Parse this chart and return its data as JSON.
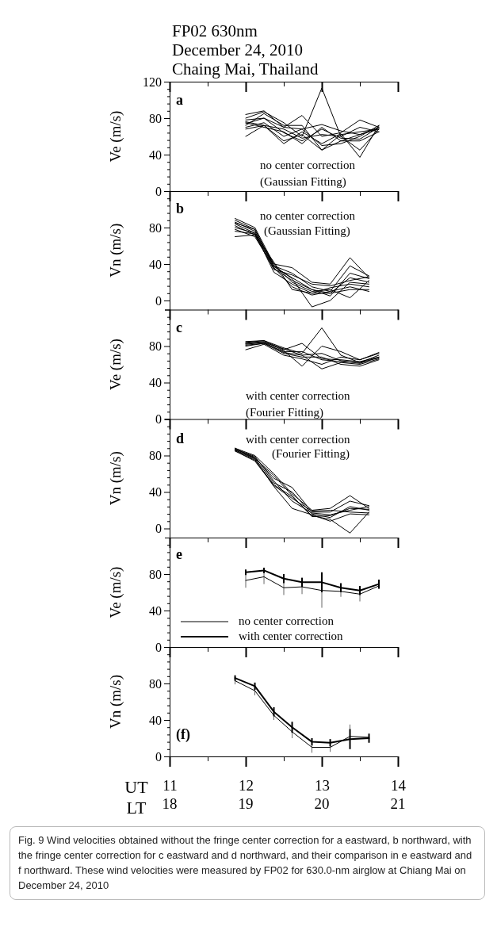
{
  "chart_data": [
    {
      "type": "line",
      "title": "FP02 630nm\nDecember 24, 2010\nChaing Mai, Thailand",
      "ylabel": "Ve (m/s)",
      "annotations": [
        "a",
        "no center correction",
        "(Gaussian Fitting)"
      ],
      "x": [
        12.0,
        12.24,
        12.5,
        12.74,
        13.0,
        13.25,
        13.5,
        13.75
      ],
      "xlim": [
        11,
        14
      ],
      "xticks": [
        11,
        {
          "value": 11.5,
          "label": null
        },
        12,
        {
          "value": 12.5,
          "label": null
        },
        13,
        {
          "value": 13.5,
          "label": null
        },
        14
      ],
      "ylim": [
        0,
        120
      ],
      "yticks": [
        0,
        {
          "value": 8,
          "label": null
        },
        {
          "value": 16,
          "label": null
        },
        {
          "value": 24,
          "label": null
        },
        {
          "value": 32,
          "label": null
        },
        40,
        {
          "value": 48,
          "label": null
        },
        {
          "value": 56,
          "label": null
        },
        {
          "value": 64,
          "label": null
        },
        {
          "value": 72,
          "label": null
        },
        80,
        {
          "value": 88,
          "label": null
        },
        {
          "value": 96,
          "label": null
        },
        {
          "value": 104,
          "label": null
        },
        {
          "value": 112,
          "label": null
        },
        120
      ],
      "tick_labels": "y",
      "series": [
        {
          "color": "#000000",
          "values": [
            84,
            88,
            70,
            68,
            73,
            66,
            62,
            70
          ]
        },
        {
          "color": "#000000",
          "values": [
            80,
            87,
            75,
            60,
            113,
            60,
            45,
            68
          ]
        },
        {
          "color": "#000000",
          "values": [
            78,
            80,
            70,
            83,
            60,
            64,
            78,
            70
          ]
        },
        {
          "color": "#000000",
          "values": [
            76,
            72,
            52,
            65,
            52,
            63,
            37,
            72
          ]
        },
        {
          "color": "#000000",
          "values": [
            75,
            70,
            65,
            52,
            70,
            55,
            55,
            65
          ]
        },
        {
          "color": "#000000",
          "values": [
            72,
            85,
            72,
            72,
            45,
            62,
            65,
            68
          ]
        },
        {
          "color": "#000000",
          "values": [
            70,
            75,
            60,
            68,
            50,
            52,
            60,
            72
          ]
        },
        {
          "color": "#000000",
          "values": [
            68,
            72,
            68,
            58,
            62,
            60,
            70,
            65
          ]
        },
        {
          "color": "#000000",
          "values": [
            60,
            72,
            55,
            62,
            45,
            55,
            62,
            68
          ]
        },
        {
          "color": "#000000",
          "values": [
            74,
            80,
            64,
            55,
            68,
            58,
            57,
            70
          ]
        }
      ]
    },
    {
      "type": "line",
      "ylabel": "Vn (m/s)",
      "annotations": [
        "b",
        "no center correction",
        "(Gaussian Fitting)"
      ],
      "x": [
        11.86,
        12.12,
        12.37,
        12.61,
        12.87,
        13.11,
        13.37,
        13.62
      ],
      "xlim": [
        11,
        14
      ],
      "xticks": [
        11,
        {
          "value": 11.5,
          "label": null
        },
        12,
        {
          "value": 12.5,
          "label": null
        },
        13,
        {
          "value": 13.5,
          "label": null
        },
        14
      ],
      "ylim": [
        -10,
        120
      ],
      "yticks": [
        0,
        {
          "value": 8,
          "label": null
        },
        {
          "value": 16,
          "label": null
        },
        {
          "value": 24,
          "label": null
        },
        {
          "value": 32,
          "label": null
        },
        40,
        {
          "value": 48,
          "label": null
        },
        {
          "value": 56,
          "label": null
        },
        {
          "value": 64,
          "label": null
        },
        {
          "value": 72,
          "label": null
        },
        80,
        {
          "value": 88,
          "label": null
        },
        {
          "value": 96,
          "label": null
        },
        {
          "value": 104,
          "label": null
        },
        {
          "value": 112,
          "label": null
        }
      ],
      "tick_labels": "y",
      "series": [
        {
          "color": "#000000",
          "values": [
            90,
            80,
            40,
            36,
            20,
            18,
            47,
            25
          ]
        },
        {
          "color": "#000000",
          "values": [
            88,
            78,
            38,
            30,
            15,
            10,
            38,
            27
          ]
        },
        {
          "color": "#000000",
          "values": [
            86,
            76,
            35,
            22,
            12,
            5,
            30,
            24
          ]
        },
        {
          "color": "#000000",
          "values": [
            84,
            74,
            31,
            18,
            8,
            8,
            25,
            20
          ]
        },
        {
          "color": "#000000",
          "values": [
            82,
            72,
            38,
            24,
            -7,
            0,
            20,
            18
          ]
        },
        {
          "color": "#000000",
          "values": [
            80,
            74,
            40,
            20,
            10,
            12,
            3,
            22
          ]
        },
        {
          "color": "#000000",
          "values": [
            78,
            70,
            36,
            15,
            6,
            10,
            15,
            10
          ]
        },
        {
          "color": "#000000",
          "values": [
            76,
            73,
            42,
            12,
            8,
            14,
            18,
            15
          ]
        },
        {
          "color": "#000000",
          "values": [
            70,
            72,
            34,
            28,
            18,
            16,
            22,
            26
          ]
        },
        {
          "color": "#000000",
          "values": [
            85,
            78,
            37,
            25,
            12,
            8,
            12,
            12
          ]
        }
      ]
    },
    {
      "type": "line",
      "ylabel": "Ve (m/s)",
      "annotations": [
        "c",
        "with center correction",
        "(Fourier Fitting)"
      ],
      "x": [
        12.0,
        12.24,
        12.5,
        12.74,
        13.0,
        13.25,
        13.5,
        13.75
      ],
      "xlim": [
        11,
        14
      ],
      "xticks": [
        11,
        {
          "value": 11.5,
          "label": null
        },
        12,
        {
          "value": 12.5,
          "label": null
        },
        13,
        {
          "value": 13.5,
          "label": null
        },
        14
      ],
      "ylim": [
        0,
        120
      ],
      "yticks": [
        0,
        {
          "value": 8,
          "label": null
        },
        {
          "value": 16,
          "label": null
        },
        {
          "value": 24,
          "label": null
        },
        {
          "value": 32,
          "label": null
        },
        40,
        {
          "value": 48,
          "label": null
        },
        {
          "value": 56,
          "label": null
        },
        {
          "value": 64,
          "label": null
        },
        {
          "value": 72,
          "label": null
        },
        80,
        {
          "value": 88,
          "label": null
        },
        {
          "value": 96,
          "label": null
        },
        {
          "value": 104,
          "label": null
        },
        {
          "value": 112,
          "label": null
        }
      ],
      "tick_labels": "y",
      "series": [
        {
          "color": "#000000",
          "values": [
            85,
            86,
            78,
            72,
            100,
            70,
            62,
            70
          ]
        },
        {
          "color": "#000000",
          "values": [
            84,
            86,
            76,
            83,
            66,
            65,
            63,
            68
          ]
        },
        {
          "color": "#000000",
          "values": [
            83,
            85,
            75,
            58,
            80,
            74,
            65,
            72
          ]
        },
        {
          "color": "#000000",
          "values": [
            82,
            84,
            73,
            70,
            55,
            62,
            60,
            66
          ]
        },
        {
          "color": "#000000",
          "values": [
            81,
            83,
            72,
            68,
            68,
            60,
            58,
            65
          ]
        },
        {
          "color": "#000000",
          "values": [
            80,
            83,
            74,
            74,
            65,
            63,
            62,
            67
          ]
        },
        {
          "color": "#000000",
          "values": [
            76,
            82,
            70,
            66,
            60,
            68,
            65,
            73
          ]
        },
        {
          "color": "#000000",
          "values": [
            83,
            84,
            77,
            70,
            72,
            64,
            61,
            68
          ]
        }
      ]
    },
    {
      "type": "line",
      "ylabel": "Vn (m/s)",
      "annotations": [
        "d",
        "with center correction",
        "(Fourier Fitting)"
      ],
      "x": [
        11.86,
        12.12,
        12.37,
        12.61,
        12.87,
        13.11,
        13.37,
        13.62
      ],
      "xlim": [
        11,
        14
      ],
      "xticks": [
        11,
        {
          "value": 11.5,
          "label": null
        },
        12,
        {
          "value": 12.5,
          "label": null
        },
        13,
        {
          "value": 13.5,
          "label": null
        },
        14
      ],
      "ylim": [
        -10,
        120
      ],
      "yticks": [
        0,
        {
          "value": 8,
          "label": null
        },
        {
          "value": 16,
          "label": null
        },
        {
          "value": 24,
          "label": null
        },
        {
          "value": 32,
          "label": null
        },
        40,
        {
          "value": 48,
          "label": null
        },
        {
          "value": 56,
          "label": null
        },
        {
          "value": 64,
          "label": null
        },
        {
          "value": 72,
          "label": null
        },
        80,
        {
          "value": 88,
          "label": null
        },
        {
          "value": 96,
          "label": null
        },
        {
          "value": 104,
          "label": null
        },
        {
          "value": 112,
          "label": null
        }
      ],
      "tick_labels": "y",
      "series": [
        {
          "color": "#000000",
          "values": [
            88,
            80,
            60,
            38,
            20,
            22,
            36,
            22
          ]
        },
        {
          "color": "#000000",
          "values": [
            87,
            78,
            55,
            45,
            18,
            18,
            30,
            25
          ]
        },
        {
          "color": "#000000",
          "values": [
            86,
            77,
            50,
            40,
            16,
            12,
            24,
            20
          ]
        },
        {
          "color": "#000000",
          "values": [
            85,
            75,
            48,
            35,
            14,
            10,
            -5,
            18
          ]
        },
        {
          "color": "#000000",
          "values": [
            86,
            76,
            46,
            22,
            15,
            8,
            16,
            15
          ]
        },
        {
          "color": "#000000",
          "values": [
            87,
            79,
            52,
            30,
            17,
            15,
            20,
            24
          ]
        },
        {
          "color": "#000000",
          "values": [
            85,
            74,
            47,
            33,
            19,
            20,
            18,
            17
          ]
        },
        {
          "color": "#000000",
          "values": [
            88,
            77,
            58,
            36,
            13,
            14,
            22,
            21
          ]
        }
      ]
    },
    {
      "type": "line",
      "ylabel": "Ve (m/s)",
      "annotations": [
        "e"
      ],
      "legend": "bottom left",
      "x": [
        12.0,
        12.24,
        12.5,
        12.74,
        13.0,
        13.25,
        13.5,
        13.75
      ],
      "xlim": [
        11,
        14
      ],
      "xticks": [
        11,
        {
          "value": 11.5,
          "label": null
        },
        12,
        {
          "value": 12.5,
          "label": null
        },
        13,
        {
          "value": 13.5,
          "label": null
        },
        14
      ],
      "ylim": [
        0,
        120
      ],
      "yticks": [
        0,
        {
          "value": 8,
          "label": null
        },
        {
          "value": 16,
          "label": null
        },
        {
          "value": 24,
          "label": null
        },
        {
          "value": 32,
          "label": null
        },
        40,
        {
          "value": 48,
          "label": null
        },
        {
          "value": 56,
          "label": null
        },
        {
          "value": 64,
          "label": null
        },
        {
          "value": 72,
          "label": null
        },
        80,
        {
          "value": 88,
          "label": null
        },
        {
          "value": 96,
          "label": null
        },
        {
          "value": 104,
          "label": null
        },
        {
          "value": 112,
          "label": null
        }
      ],
      "tick_labels": "y",
      "series": [
        {
          "name": "no center correction",
          "color": "#000000",
          "values": [
            73,
            77,
            65,
            66,
            62,
            61,
            58,
            67
          ],
          "errors": [
            8,
            8,
            8,
            8,
            19,
            6,
            8,
            3
          ]
        },
        {
          "name": "with center correction",
          "color": "#000000",
          "values": [
            82,
            84,
            75,
            71,
            71,
            65,
            62,
            69
          ],
          "errors": [
            3,
            3,
            5,
            5,
            11,
            5,
            5,
            5
          ]
        }
      ]
    },
    {
      "type": "line",
      "ylabel": "Vn (m/s)",
      "xlabel": "UT",
      "x2label": "LT",
      "annotations": [
        "(f)",
        "Fig. 9  Wind velocities obtained without the fringe center correction for a eastward, b northward, with the fringe center correction for c eastward and d northward, and their comparison in e eastward and f northward. These wind velocities were measured by FP02 for 630.0-nm airglow at Chiang Mai on December 24, 2010"
      ],
      "x": [
        11.86,
        12.12,
        12.37,
        12.61,
        12.87,
        13.11,
        13.37,
        13.62
      ],
      "xlim": [
        11,
        14
      ],
      "xticks": [
        11,
        {
          "value": 11.5,
          "label": null
        },
        12,
        {
          "value": 12.5,
          "label": null
        },
        13,
        {
          "value": 13.5,
          "label": null
        },
        14
      ],
      "x2lim": [
        18,
        21
      ],
      "x2ticks": [
        18,
        19,
        20,
        21
      ],
      "ylim": [
        0,
        120
      ],
      "yticks": [
        0,
        {
          "value": 8,
          "label": null
        },
        {
          "value": 16,
          "label": null
        },
        {
          "value": 24,
          "label": null
        },
        {
          "value": 32,
          "label": null
        },
        40,
        {
          "value": 48,
          "label": null
        },
        {
          "value": 56,
          "label": null
        },
        {
          "value": 64,
          "label": null
        },
        {
          "value": 72,
          "label": null
        },
        80,
        {
          "value": 88,
          "label": null
        },
        {
          "value": 96,
          "label": null
        },
        {
          "value": 104,
          "label": null
        },
        {
          "value": 112,
          "label": null
        }
      ],
      "series": [
        {
          "color": "#000000",
          "values": [
            83,
            72,
            45,
            27,
            10,
            10,
            22,
            21
          ],
          "errors": [
            4,
            5,
            5,
            7,
            6,
            5,
            13,
            3
          ]
        },
        {
          "color": "#000000",
          "values": [
            86,
            77,
            49,
            32,
            16,
            15,
            19,
            20
          ],
          "errors": [
            3,
            4,
            5,
            6,
            4,
            4,
            11,
            5
          ]
        }
      ]
    }
  ]
}
